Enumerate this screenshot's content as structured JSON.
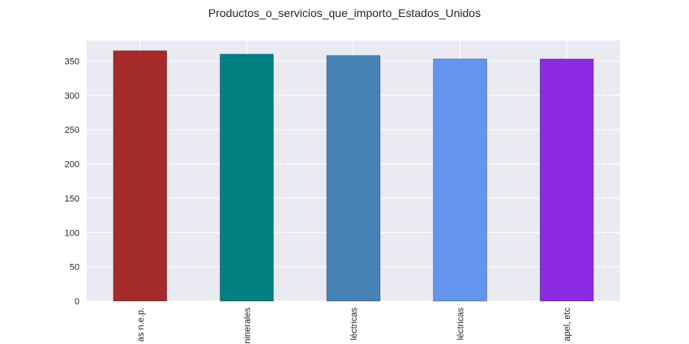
{
  "chart_data": {
    "type": "bar",
    "title": "Productos_o_servicios_que_importo_Estados_Unidos",
    "xlabel": "",
    "ylabel": "",
    "categories": [
      "as n.e.p.",
      "ninerales",
      "léctricas",
      "léctricas",
      "apel, etc"
    ],
    "values": [
      365,
      360,
      358,
      353,
      353
    ],
    "colors": [
      "#a52a2a",
      "#008080",
      "#4682b4",
      "#6495ed",
      "#8a2be2"
    ],
    "ylim": [
      0,
      380
    ],
    "yticks": [
      0,
      50,
      100,
      150,
      200,
      250,
      300,
      350
    ],
    "grid": true,
    "background": "#eaeaf2"
  }
}
